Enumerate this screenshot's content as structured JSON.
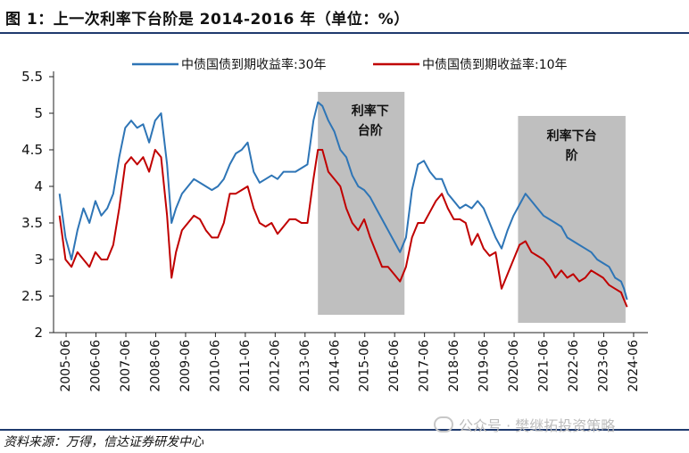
{
  "title": "图 1：上一次利率下台阶是 2014-2016 年（单位：%）",
  "source": "资料来源：万得，信达证券研发中心",
  "watermark": "公众号 · 樊继拓投资策略",
  "colors": {
    "series_30y": "#2e75b6",
    "series_10y": "#c00000",
    "shade": "#bfbfbf",
    "rule": "#1f3a6e"
  },
  "chart_data": {
    "type": "line",
    "title": "",
    "xlabel": "",
    "ylabel": "",
    "ylim": [
      2,
      5.5
    ],
    "y_ticks": [
      "2",
      "2.5",
      "3",
      "3.5",
      "4",
      "4.5",
      "5",
      "5.5"
    ],
    "x_ticks": [
      "2005-06",
      "2006-06",
      "2007-06",
      "2008-06",
      "2009-06",
      "2010-06",
      "2011-06",
      "2012-06",
      "2013-06",
      "2014-06",
      "2015-06",
      "2016-06",
      "2017-06",
      "2018-06",
      "2019-06",
      "2020-06",
      "2021-06",
      "2022-06",
      "2023-06",
      "2024-06"
    ],
    "grid": false,
    "legend_position": "top",
    "shaded_regions": [
      {
        "start": 2013.85,
        "end": 2016.75,
        "label": "利率下台阶"
      },
      {
        "start": 2020.55,
        "end": 2024.15,
        "label": "利率下台阶"
      }
    ],
    "series": [
      {
        "name": "中债国债到期收益率:30年",
        "color": "#2e75b6",
        "x": [
          2005.2,
          2005.4,
          2005.6,
          2005.8,
          2006.0,
          2006.2,
          2006.4,
          2006.6,
          2006.8,
          2007.0,
          2007.2,
          2007.4,
          2007.6,
          2007.8,
          2008.0,
          2008.2,
          2008.4,
          2008.6,
          2008.8,
          2008.95,
          2009.1,
          2009.3,
          2009.5,
          2009.7,
          2009.9,
          2010.1,
          2010.3,
          2010.5,
          2010.7,
          2010.9,
          2011.1,
          2011.3,
          2011.5,
          2011.7,
          2011.9,
          2012.1,
          2012.3,
          2012.5,
          2012.7,
          2012.9,
          2013.1,
          2013.3,
          2013.5,
          2013.7,
          2013.85,
          2014.0,
          2014.2,
          2014.4,
          2014.6,
          2014.8,
          2015.0,
          2015.2,
          2015.4,
          2015.6,
          2015.8,
          2016.0,
          2016.2,
          2016.4,
          2016.6,
          2016.8,
          2017.0,
          2017.2,
          2017.4,
          2017.6,
          2017.8,
          2018.0,
          2018.2,
          2018.4,
          2018.6,
          2018.8,
          2019.0,
          2019.2,
          2019.4,
          2019.6,
          2019.8,
          2020.0,
          2020.2,
          2020.4,
          2020.6,
          2020.8,
          2021.0,
          2021.2,
          2021.4,
          2021.6,
          2021.8,
          2022.0,
          2022.2,
          2022.4,
          2022.6,
          2022.8,
          2023.0,
          2023.2,
          2023.4,
          2023.6,
          2023.8,
          2024.0,
          2024.1,
          2024.2
        ],
        "y": [
          3.9,
          3.3,
          3.0,
          3.4,
          3.7,
          3.5,
          3.8,
          3.6,
          3.7,
          3.9,
          4.4,
          4.8,
          4.9,
          4.8,
          4.85,
          4.6,
          4.9,
          5.0,
          4.3,
          3.5,
          3.7,
          3.9,
          4.0,
          4.1,
          4.05,
          4.0,
          3.95,
          4.0,
          4.1,
          4.3,
          4.45,
          4.5,
          4.6,
          4.2,
          4.05,
          4.1,
          4.15,
          4.1,
          4.2,
          4.2,
          4.2,
          4.25,
          4.3,
          4.9,
          5.15,
          5.1,
          4.9,
          4.75,
          4.5,
          4.4,
          4.15,
          4.0,
          3.95,
          3.85,
          3.7,
          3.55,
          3.4,
          3.25,
          3.1,
          3.3,
          3.95,
          4.3,
          4.35,
          4.2,
          4.1,
          4.1,
          3.9,
          3.8,
          3.7,
          3.75,
          3.7,
          3.8,
          3.7,
          3.5,
          3.3,
          3.15,
          3.4,
          3.6,
          3.75,
          3.9,
          3.8,
          3.7,
          3.6,
          3.55,
          3.5,
          3.45,
          3.3,
          3.25,
          3.2,
          3.15,
          3.1,
          3.0,
          2.95,
          2.9,
          2.75,
          2.7,
          2.6,
          2.45
        ]
      },
      {
        "name": "中债国债到期收益率:10年",
        "color": "#c00000",
        "x": [
          2005.2,
          2005.4,
          2005.6,
          2005.8,
          2006.0,
          2006.2,
          2006.4,
          2006.6,
          2006.8,
          2007.0,
          2007.2,
          2007.4,
          2007.6,
          2007.8,
          2008.0,
          2008.2,
          2008.4,
          2008.6,
          2008.8,
          2008.95,
          2009.1,
          2009.3,
          2009.5,
          2009.7,
          2009.9,
          2010.1,
          2010.3,
          2010.5,
          2010.7,
          2010.9,
          2011.1,
          2011.3,
          2011.5,
          2011.7,
          2011.9,
          2012.1,
          2012.3,
          2012.5,
          2012.7,
          2012.9,
          2013.1,
          2013.3,
          2013.5,
          2013.7,
          2013.85,
          2014.0,
          2014.2,
          2014.4,
          2014.6,
          2014.8,
          2015.0,
          2015.2,
          2015.4,
          2015.6,
          2015.8,
          2016.0,
          2016.2,
          2016.4,
          2016.6,
          2016.8,
          2017.0,
          2017.2,
          2017.4,
          2017.6,
          2017.8,
          2018.0,
          2018.2,
          2018.4,
          2018.6,
          2018.8,
          2019.0,
          2019.2,
          2019.4,
          2019.6,
          2019.8,
          2020.0,
          2020.2,
          2020.4,
          2020.6,
          2020.8,
          2021.0,
          2021.2,
          2021.4,
          2021.6,
          2021.8,
          2022.0,
          2022.2,
          2022.4,
          2022.6,
          2022.8,
          2023.0,
          2023.2,
          2023.4,
          2023.6,
          2023.8,
          2024.0,
          2024.1,
          2024.2
        ],
        "y": [
          3.6,
          3.0,
          2.9,
          3.1,
          3.0,
          2.9,
          3.1,
          3.0,
          3.0,
          3.2,
          3.7,
          4.3,
          4.4,
          4.3,
          4.4,
          4.2,
          4.5,
          4.4,
          3.6,
          2.75,
          3.1,
          3.4,
          3.5,
          3.6,
          3.55,
          3.4,
          3.3,
          3.3,
          3.5,
          3.9,
          3.9,
          3.95,
          4.0,
          3.7,
          3.5,
          3.45,
          3.5,
          3.35,
          3.45,
          3.55,
          3.55,
          3.5,
          3.5,
          4.1,
          4.5,
          4.5,
          4.2,
          4.1,
          4.0,
          3.7,
          3.5,
          3.4,
          3.55,
          3.3,
          3.1,
          2.9,
          2.9,
          2.8,
          2.7,
          2.9,
          3.3,
          3.5,
          3.5,
          3.65,
          3.8,
          3.9,
          3.7,
          3.55,
          3.55,
          3.5,
          3.2,
          3.35,
          3.15,
          3.05,
          3.1,
          2.6,
          2.8,
          3.0,
          3.2,
          3.25,
          3.1,
          3.05,
          3.0,
          2.9,
          2.75,
          2.85,
          2.75,
          2.8,
          2.7,
          2.75,
          2.85,
          2.8,
          2.75,
          2.65,
          2.6,
          2.55,
          2.45,
          2.35
        ]
      }
    ]
  }
}
